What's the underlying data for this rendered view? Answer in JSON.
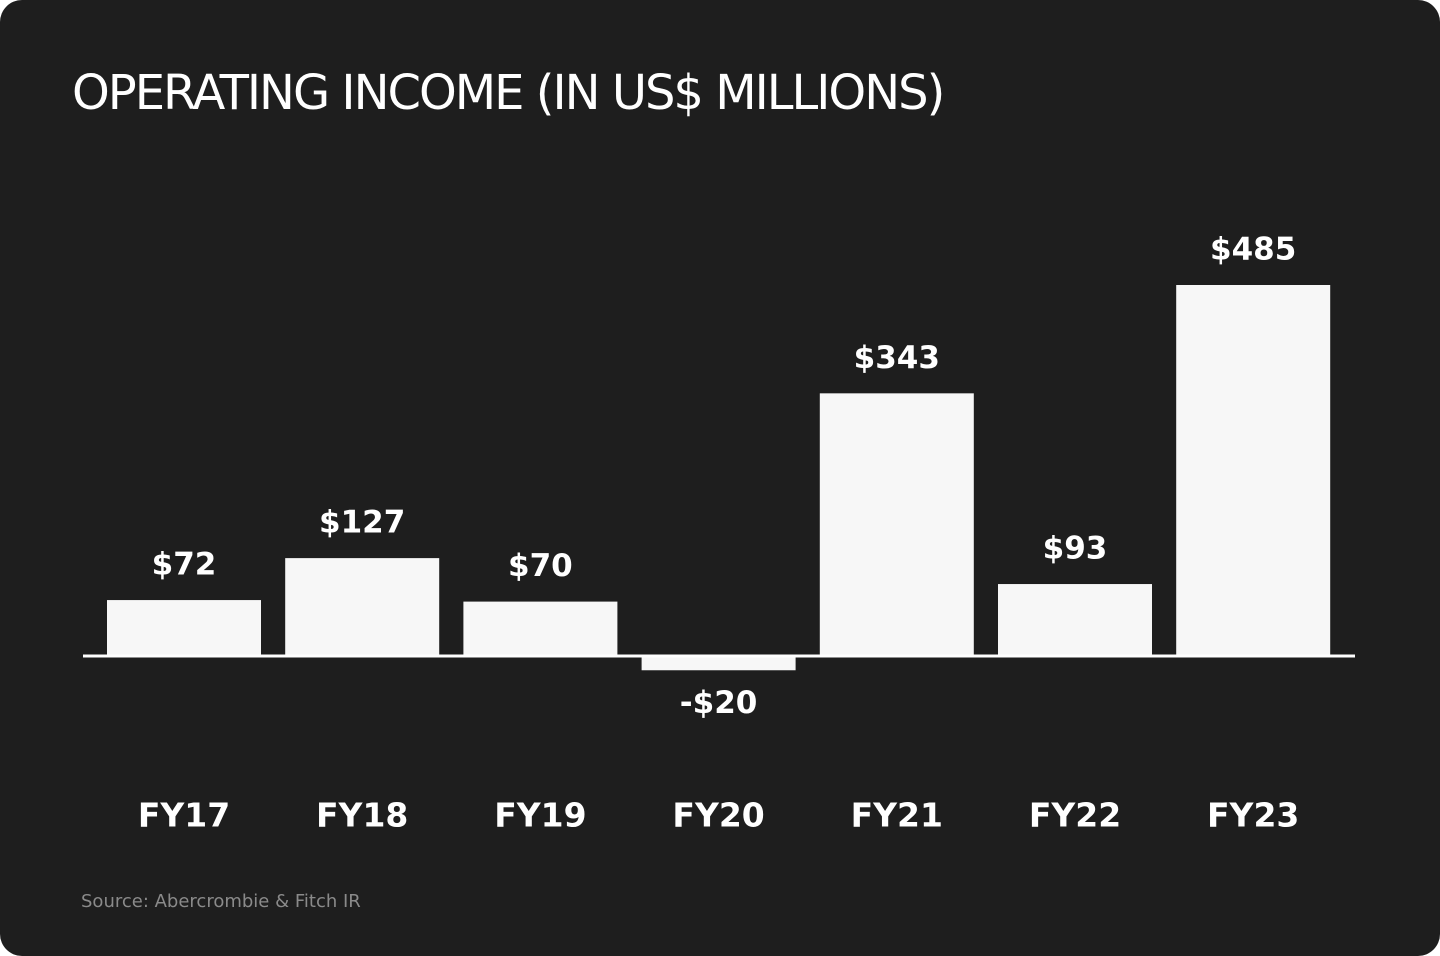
{
  "chart_data": {
    "type": "bar",
    "title": "OPERATING INCOME (IN US$ MILLIONS)",
    "categories": [
      "FY17",
      "FY18",
      "FY19",
      "FY20",
      "FY21",
      "FY22",
      "FY23"
    ],
    "values": [
      72,
      127,
      70,
      -20,
      343,
      93,
      485
    ],
    "value_labels": [
      "$72",
      "$127",
      "$70",
      "-$20",
      "$343",
      "$93",
      "$485"
    ],
    "color": "#f7f7f7",
    "source": "Source: Abercrombie & Fitch IR"
  }
}
